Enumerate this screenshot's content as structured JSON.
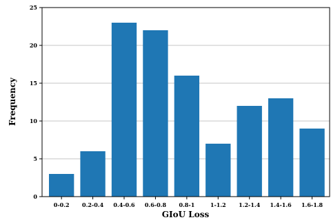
{
  "chart_data": {
    "type": "bar",
    "title": "",
    "xlabel": "GIoU Loss",
    "ylabel": "Frequency",
    "categories": [
      "0-0.2",
      "0.2-0.4",
      "0.4-0.6",
      "0.6-0.8",
      "0.8-1",
      "1-1.2",
      "1.2-1.4",
      "1.4-1.6",
      "1.6-1.8"
    ],
    "values": [
      3,
      6,
      23,
      22,
      16,
      7,
      12,
      13,
      9
    ],
    "ylim": [
      0,
      25
    ],
    "yticks": [
      "0",
      "5",
      "10",
      "15",
      "20",
      "25"
    ],
    "grid": "horizontal",
    "bar_color": "#1f77b4",
    "grid_color": "#b0b0b0"
  }
}
